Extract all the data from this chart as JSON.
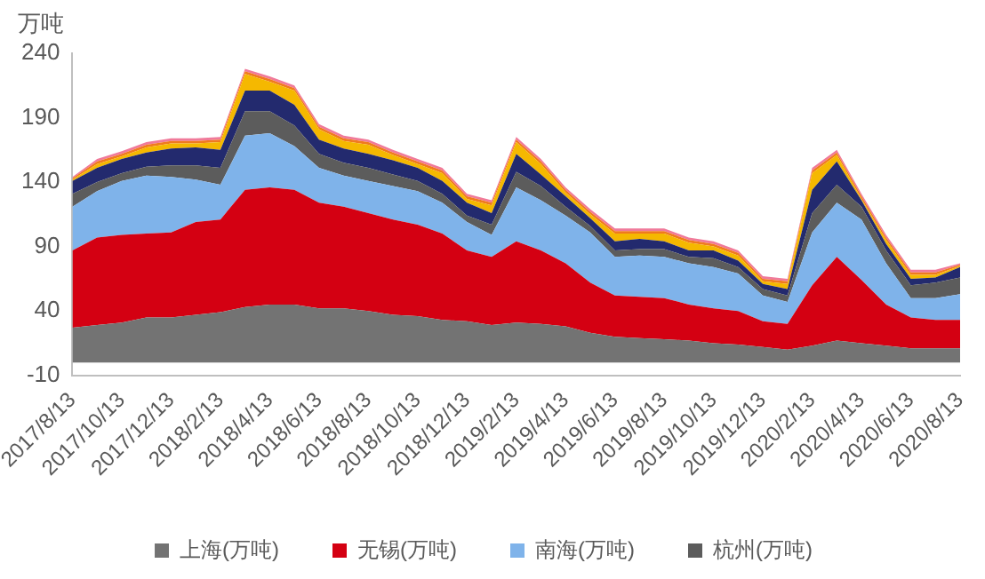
{
  "chart_data": {
    "type": "area",
    "stacked": true,
    "ylabel": "万吨",
    "legend": "bottom",
    "grid": false,
    "categories": [
      "2017/8/13",
      null,
      "2017/10/13",
      null,
      "2017/12/13",
      null,
      "2018/2/13",
      null,
      "2018/4/13",
      null,
      "2018/6/13",
      null,
      "2018/8/13",
      null,
      "2018/10/13",
      null,
      "2018/12/13",
      null,
      "2019/2/13",
      null,
      "2019/4/13",
      null,
      "2019/6/13",
      null,
      "2019/8/13",
      null,
      "2019/10/13",
      null,
      "2019/12/13",
      null,
      "2020/2/13",
      null,
      "2020/4/13",
      null,
      "2020/6/13",
      null,
      "2020/8/13"
    ],
    "ylim": [
      -10,
      240
    ],
    "yticks": [
      -10,
      40,
      90,
      140,
      190,
      240
    ],
    "series": [
      {
        "name": "上海(万吨)",
        "color": "#737373",
        "values": [
          27,
          29,
          31,
          35,
          35,
          37,
          39,
          43,
          45,
          45,
          42,
          42,
          40,
          37,
          36,
          33,
          32,
          29,
          31,
          30,
          28,
          23,
          20,
          19,
          18,
          17,
          15,
          14,
          12,
          10,
          13,
          17,
          15,
          13,
          11,
          11,
          11
        ]
      },
      {
        "name": "无锡(万吨)",
        "color": "#d40012",
        "values": [
          60,
          68,
          68,
          65,
          66,
          72,
          72,
          91,
          91,
          89,
          82,
          79,
          76,
          74,
          71,
          67,
          55,
          53,
          63,
          57,
          49,
          39,
          32,
          32,
          32,
          28,
          27,
          26,
          20,
          20,
          47,
          65,
          49,
          32,
          24,
          22,
          22
        ]
      },
      {
        "name": "南海(万吨)",
        "color": "#7fb3ea",
        "values": [
          34,
          36,
          42,
          45,
          43,
          33,
          27,
          42,
          42,
          34,
          27,
          24,
          25,
          26,
          26,
          24,
          22,
          17,
          42,
          39,
          37,
          39,
          30,
          32,
          32,
          32,
          32,
          29,
          20,
          17,
          41,
          42,
          47,
          32,
          15,
          17,
          20
        ]
      },
      {
        "name": "杭州(万吨)",
        "color": "#5c5c5c",
        "values": [
          10,
          7,
          6,
          7,
          9,
          11,
          13,
          19,
          17,
          16,
          11,
          10,
          10,
          9,
          8,
          7,
          5,
          8,
          12,
          11,
          7,
          5,
          5,
          5,
          6,
          5,
          7,
          5,
          5,
          5,
          15,
          14,
          10,
          10,
          10,
          12,
          13
        ]
      },
      {
        "color": "#232a6e",
        "values": [
          10,
          11,
          11,
          11,
          13,
          14,
          14,
          16,
          16,
          16,
          11,
          11,
          11,
          11,
          10,
          10,
          10,
          9,
          14,
          9,
          8,
          6,
          7,
          8,
          6,
          5,
          6,
          5,
          4,
          5,
          18,
          18,
          5,
          5,
          5,
          4,
          8
        ]
      },
      {
        "color": "#f5b800",
        "values": [
          1,
          3,
          2,
          4,
          4,
          3,
          6,
          13,
          7,
          11,
          8,
          6,
          7,
          4,
          3,
          6,
          3,
          6,
          9,
          8,
          3,
          3,
          6,
          4,
          6,
          6,
          3,
          4,
          2,
          4,
          13,
          5,
          1,
          3,
          3,
          2,
          1
        ]
      },
      {
        "color": "#f07a1e",
        "values": [
          1,
          2,
          2,
          2,
          2,
          2,
          2,
          2,
          2,
          2,
          2,
          2,
          2,
          2,
          2,
          2,
          2,
          2,
          2,
          2,
          2,
          2,
          2,
          2,
          2,
          2,
          2,
          2,
          2,
          2,
          2,
          2,
          2,
          2,
          2,
          2,
          1
        ]
      },
      {
        "color": "#f07a9a",
        "values": [
          1,
          2,
          2,
          2,
          2,
          2,
          2,
          2,
          2,
          2,
          2,
          2,
          2,
          2,
          2,
          2,
          2,
          2,
          2,
          2,
          2,
          2,
          2,
          2,
          2,
          2,
          2,
          2,
          2,
          2,
          2,
          2,
          2,
          2,
          2,
          2,
          1
        ]
      }
    ]
  }
}
